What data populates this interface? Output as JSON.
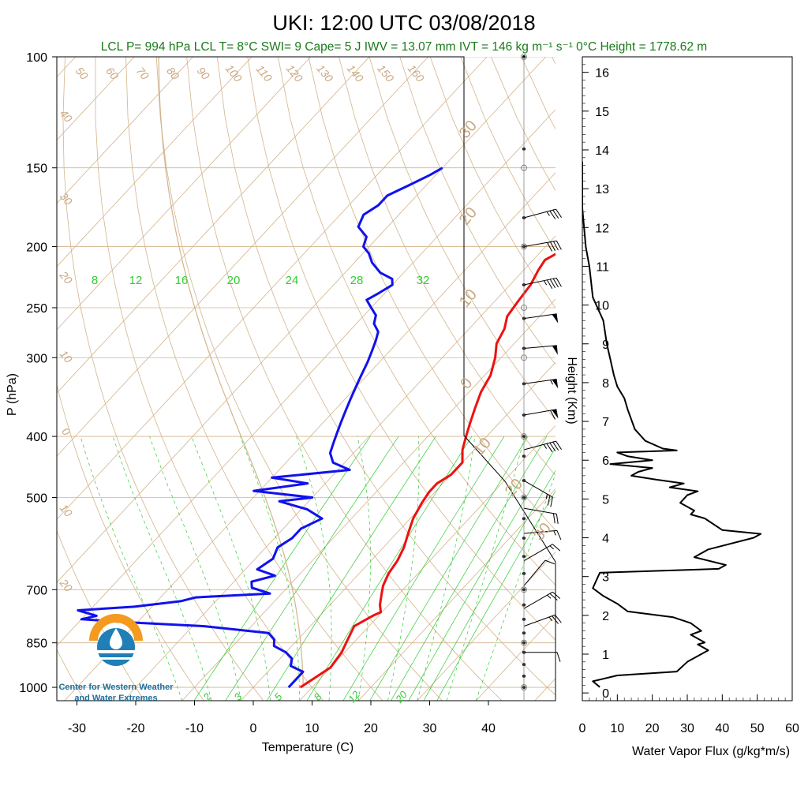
{
  "title": "UKI: 12:00 UTC 03/08/2018",
  "subtitle": "LCL P= 994 hPa  LCL T= 8°C  SWI= 9  Cape= 5 J  IWV = 13.07 mm  IVT = 146 kg m⁻¹ s⁻¹  0°C Height = 1778.62 m",
  "logo": {
    "line1": "Center for Western Weather",
    "line2": "and Water Extremes"
  },
  "colors": {
    "temperature": "#ee1111",
    "dewpoint": "#1111ee",
    "isotherm": "#d2b48c",
    "mixing_ratio": "#33cc33",
    "flux": "#000000"
  },
  "chart_data": [
    {
      "type": "line",
      "name": "skew-t",
      "xlabel": "Temperature (C)",
      "ylabel": "P (hPa)",
      "xlim": [
        -33,
        52
      ],
      "ylim": [
        1050,
        100
      ],
      "x_ticks": [
        -30,
        -20,
        -10,
        0,
        10,
        20,
        30,
        40
      ],
      "p_ticks": [
        100,
        150,
        200,
        250,
        300,
        400,
        500,
        700,
        850,
        1000
      ],
      "isotherm_labels": [
        -40,
        -30,
        -20,
        -10,
        0,
        10,
        20,
        30,
        40,
        50,
        60,
        70,
        80,
        90,
        100,
        110,
        120,
        130,
        140,
        150,
        160
      ],
      "theta_labels_left": [
        40,
        30,
        20,
        10,
        0,
        -10,
        -20
      ],
      "theta_labels_right": [
        30,
        20,
        10,
        0,
        10,
        20,
        30
      ],
      "mixing_ratio_upper": [
        8,
        12,
        16,
        20,
        24,
        28,
        32
      ],
      "mixing_ratio_lower": [
        2,
        3,
        5,
        8,
        12,
        20
      ],
      "series": [
        {
          "name": "temperature",
          "points": [
            [
              8,
              1000
            ],
            [
              9,
              965
            ],
            [
              10,
              930
            ],
            [
              9.5,
              880
            ],
            [
              8.5,
              840
            ],
            [
              7.5,
              800
            ],
            [
              9,
              770
            ],
            [
              9.8,
              760
            ],
            [
              8.5,
              740
            ],
            [
              7,
              710
            ],
            [
              6,
              690
            ],
            [
              5,
              660
            ],
            [
              4.5,
              630
            ],
            [
              3.5,
              600
            ],
            [
              2,
              570
            ],
            [
              0.5,
              540
            ],
            [
              -0.5,
              510
            ],
            [
              -1,
              490
            ],
            [
              -1,
              475
            ],
            [
              0,
              460
            ],
            [
              0,
              440
            ],
            [
              -2,
              420
            ],
            [
              -3.5,
              400
            ],
            [
              -5,
              380
            ],
            [
              -6.5,
              360
            ],
            [
              -8,
              340
            ],
            [
              -9,
              320
            ],
            [
              -11,
              300
            ],
            [
              -13,
              285
            ],
            [
              -14,
              270
            ],
            [
              -15.5,
              258
            ],
            [
              -16,
              245
            ],
            [
              -16.5,
              230
            ],
            [
              -17.5,
              218
            ],
            [
              -18,
              210
            ],
            [
              -17,
              205
            ],
            [
              -15.5,
              200
            ],
            [
              -13,
              193
            ],
            [
              -11,
              186
            ],
            [
              -9.5,
              178
            ],
            [
              -6.5,
              172
            ],
            [
              -4,
              167
            ],
            [
              -3,
              162
            ],
            [
              -2,
              157
            ],
            [
              -0.5,
              152
            ],
            [
              0,
              150
            ]
          ]
        },
        {
          "name": "dewpoint",
          "points": [
            [
              6,
              1000
            ],
            [
              6,
              975
            ],
            [
              6,
              945
            ],
            [
              3,
              925
            ],
            [
              2,
              900
            ],
            [
              0,
              880
            ],
            [
              -3,
              860
            ],
            [
              -4,
              840
            ],
            [
              -6,
              820
            ],
            [
              -18,
              800
            ],
            [
              -30,
              790
            ],
            [
              -40,
              780
            ],
            [
              -38,
              770
            ],
            [
              -42,
              755
            ],
            [
              -33,
              745
            ],
            [
              -26,
              730
            ],
            [
              -24,
              720
            ],
            [
              -12,
              710
            ],
            [
              -16,
              695
            ],
            [
              -17,
              680
            ],
            [
              -14,
              665
            ],
            [
              -18,
              650
            ],
            [
              -17,
              625
            ],
            [
              -18,
              600
            ],
            [
              -17,
              580
            ],
            [
              -17,
              560
            ],
            [
              -15,
              540
            ],
            [
              -19,
              522
            ],
            [
              -25,
              507
            ],
            [
              -20,
              500
            ],
            [
              -31,
              488
            ],
            [
              -23,
              475
            ],
            [
              -30,
              465
            ],
            [
              -18,
              452
            ],
            [
              -22,
              440
            ],
            [
              -24,
              425
            ],
            [
              -25,
              410
            ],
            [
              -26,
              395
            ],
            [
              -27,
              380
            ],
            [
              -28,
              365
            ],
            [
              -29,
              350
            ],
            [
              -30,
              335
            ],
            [
              -31,
              320
            ],
            [
              -32,
              305
            ],
            [
              -33,
              293
            ],
            [
              -34,
              282
            ],
            [
              -35,
              273
            ],
            [
              -37,
              265
            ],
            [
              -38,
              257
            ],
            [
              -40,
              250
            ],
            [
              -42,
              243
            ],
            [
              -41,
              237
            ],
            [
              -40,
              230
            ],
            [
              -41,
              225
            ],
            [
              -44,
              220
            ],
            [
              -47,
              212
            ],
            [
              -49,
              205
            ],
            [
              -51,
              200
            ],
            [
              -52,
              193
            ],
            [
              -55,
              186
            ],
            [
              -56,
              178
            ],
            [
              -55,
              172
            ],
            [
              -55,
              166
            ],
            [
              -53,
              160
            ],
            [
              -51,
              154
            ],
            [
              -50,
              150
            ]
          ]
        }
      ]
    },
    {
      "type": "line",
      "name": "water-vapor-flux",
      "xlabel": "Water Vapor Flux (g/kg*m/s)",
      "ylabel": "Height (Km)",
      "xlim": [
        0,
        60
      ],
      "ylim": [
        -0.2,
        16.4
      ],
      "x_ticks": [
        0,
        10,
        20,
        30,
        40,
        50,
        60
      ],
      "y_ticks": [
        0,
        1,
        2,
        3,
        4,
        5,
        6,
        7,
        8,
        9,
        10,
        11,
        12,
        13,
        14,
        15,
        16
      ],
      "series": [
        {
          "name": "flux",
          "points": [
            [
              5,
              0.15
            ],
            [
              3,
              0.3
            ],
            [
              10,
              0.45
            ],
            [
              27,
              0.55
            ],
            [
              30,
              0.8
            ],
            [
              34,
              1.0
            ],
            [
              36,
              1.1
            ],
            [
              33,
              1.25
            ],
            [
              35,
              1.3
            ],
            [
              31,
              1.5
            ],
            [
              34,
              1.6
            ],
            [
              31,
              1.8
            ],
            [
              26,
              1.95
            ],
            [
              13,
              2.1
            ],
            [
              10,
              2.3
            ],
            [
              6,
              2.5
            ],
            [
              3,
              2.7
            ],
            [
              4,
              2.9
            ],
            [
              5,
              3.1
            ],
            [
              39,
              3.2
            ],
            [
              41,
              3.3
            ],
            [
              32,
              3.5
            ],
            [
              36,
              3.7
            ],
            [
              49,
              4.0
            ],
            [
              51,
              4.1
            ],
            [
              40,
              4.2
            ],
            [
              35,
              4.5
            ],
            [
              31,
              4.6
            ],
            [
              32,
              4.7
            ],
            [
              28,
              4.9
            ],
            [
              30,
              5.1
            ],
            [
              33,
              5.2
            ],
            [
              25,
              5.3
            ],
            [
              29,
              5.4
            ],
            [
              21,
              5.5
            ],
            [
              14,
              5.6
            ],
            [
              16,
              5.7
            ],
            [
              20,
              5.8
            ],
            [
              8,
              5.9
            ],
            [
              20,
              6.0
            ],
            [
              13,
              6.1
            ],
            [
              10,
              6.2
            ],
            [
              27,
              6.25
            ],
            [
              23,
              6.3
            ],
            [
              18,
              6.5
            ],
            [
              15,
              6.8
            ],
            [
              13,
              7.3
            ],
            [
              12,
              7.6
            ],
            [
              10,
              7.9
            ],
            [
              9,
              8.2
            ],
            [
              8,
              8.6
            ],
            [
              7,
              9.0
            ],
            [
              6,
              9.6
            ],
            [
              3,
              10.2
            ],
            [
              2,
              11.0
            ],
            [
              1,
              11.5
            ],
            [
              0,
              12.5
            ],
            [
              0,
              13.7
            ]
          ]
        }
      ]
    }
  ],
  "wind_barbs": {
    "pressures": [
      180,
      200,
      230,
      260,
      290,
      330,
      370,
      420,
      470,
      520,
      570,
      630,
      690,
      750,
      800,
      880
    ],
    "directions_deg": [
      255,
      260,
      258,
      262,
      265,
      262,
      260,
      255,
      300,
      280,
      265,
      240,
      220,
      240,
      250,
      270
    ],
    "speeds_kt": [
      35,
      40,
      45,
      50,
      50,
      55,
      60,
      45,
      25,
      20,
      15,
      15,
      10,
      25,
      25,
      10
    ]
  }
}
